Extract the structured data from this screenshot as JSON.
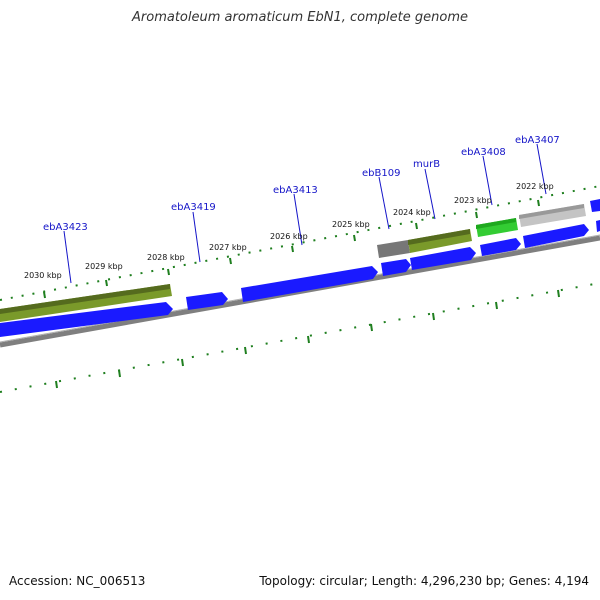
{
  "title": "Aromatoleum aromaticum EbN1, complete genome",
  "footer": {
    "accession": "Accession: NC_006513",
    "topology": "Topology: circular; Length: 4,296,230 bp; Genes: 4,194"
  },
  "colors": {
    "cds": "#1a1aff",
    "rna_green": "#7a9a2a",
    "bright_green": "#33cc33",
    "grey": "#b8b8b8",
    "backbone": "#808080",
    "tick": "#1f7f1f",
    "label": "#1515c8"
  },
  "gene_labels": [
    "ebA3423",
    "ebA3419",
    "ebA3413",
    "ebB109",
    "murB",
    "ebA3408",
    "ebA3407"
  ],
  "kbp_labels": [
    "2030 kbp",
    "2029 kbp",
    "2028 kbp",
    "2027 kbp",
    "2026 kbp",
    "2025 kbp",
    "2024 kbp",
    "2023 kbp",
    "2022 kbp"
  ]
}
